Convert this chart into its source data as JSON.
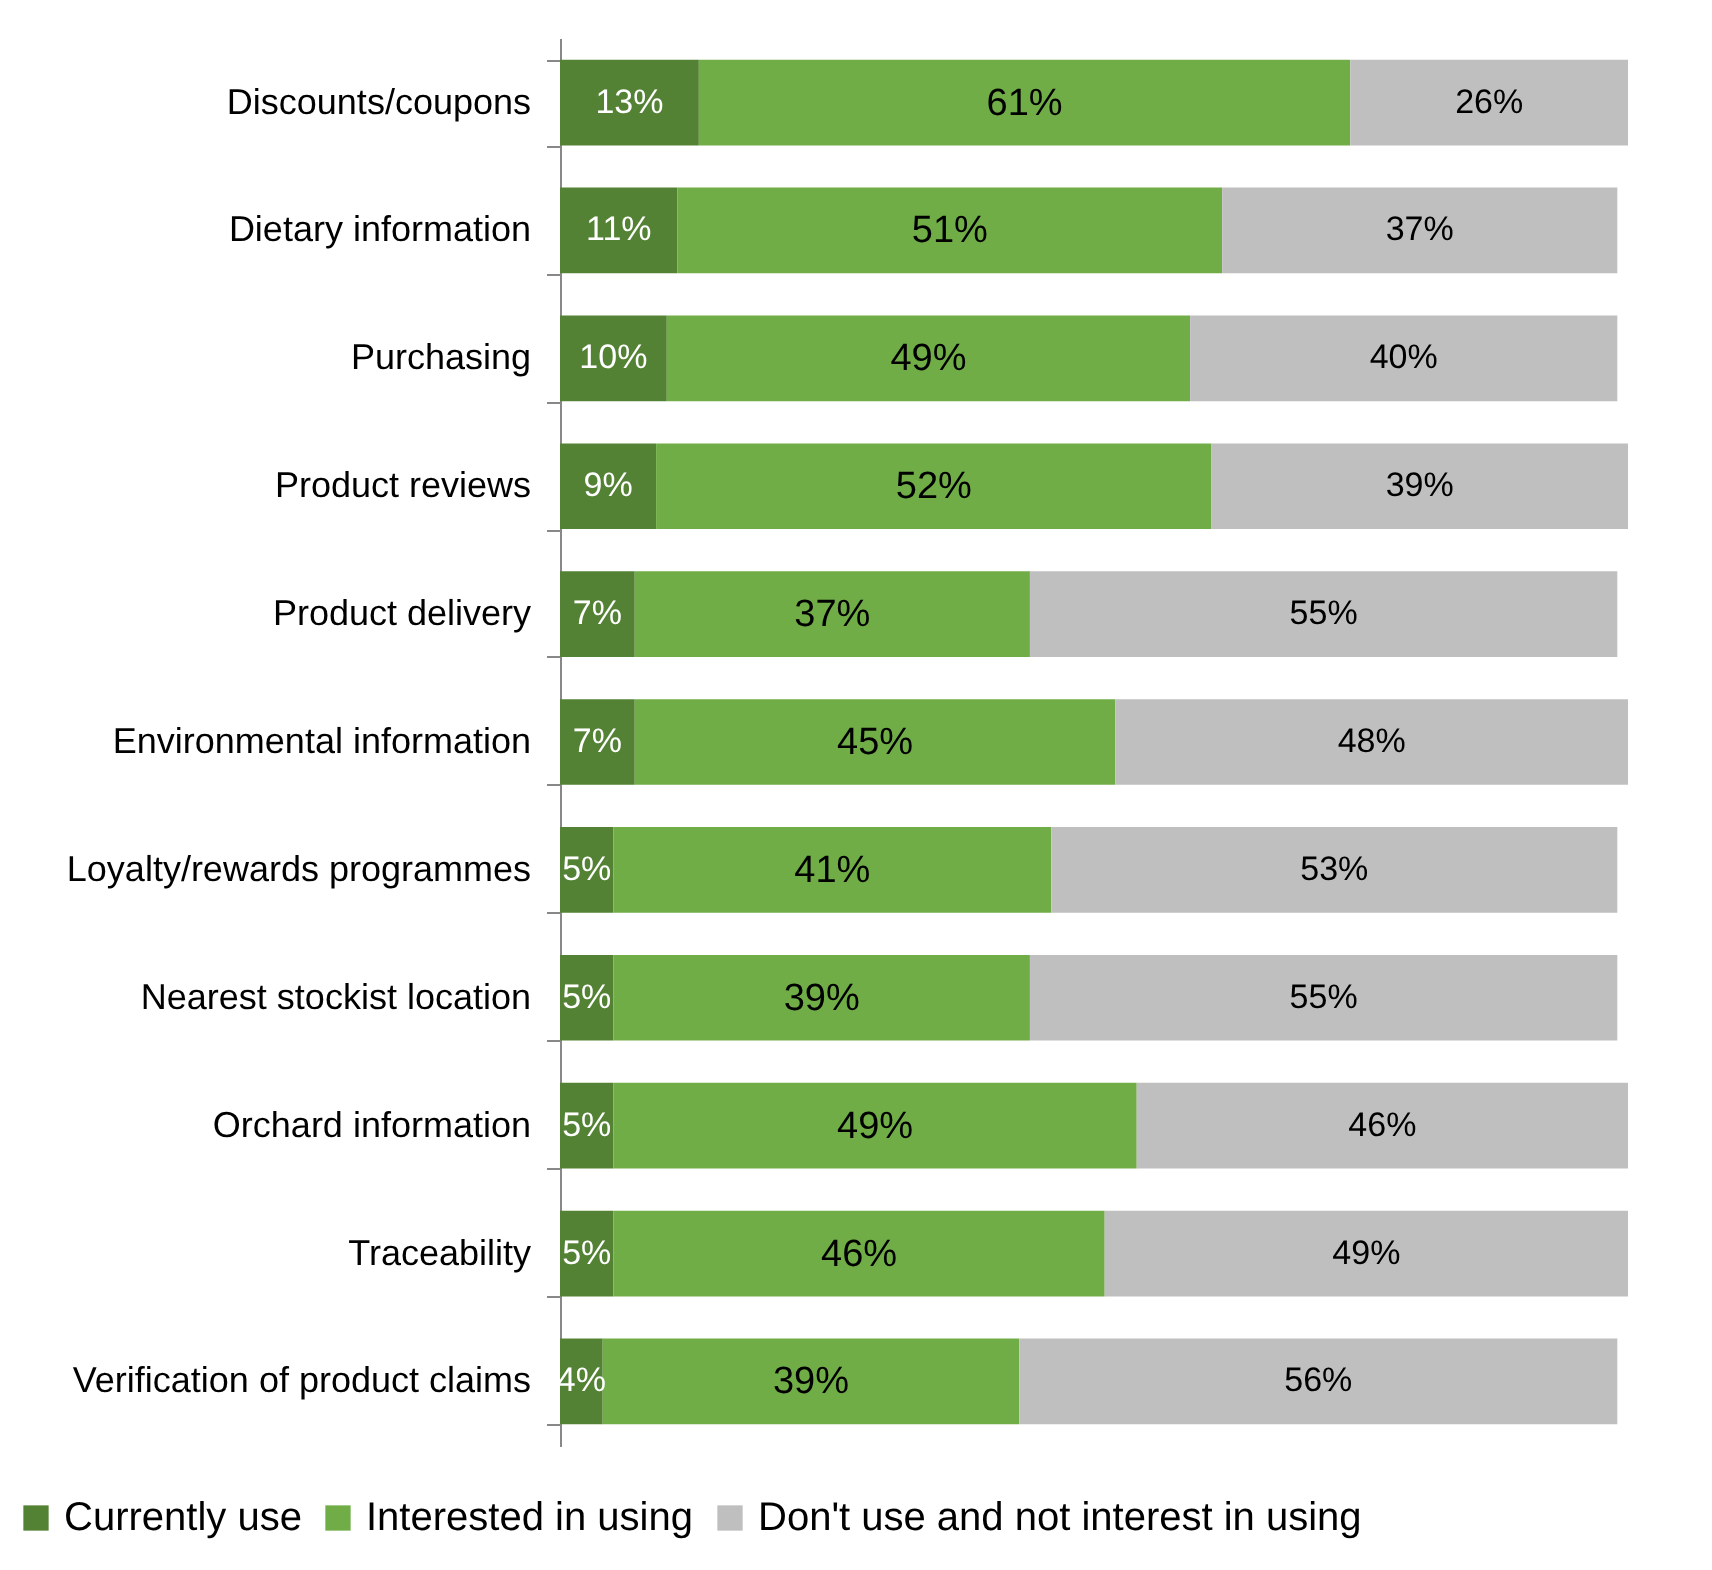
{
  "chart_data": {
    "type": "bar",
    "orientation": "horizontal",
    "stacked": true,
    "legend": "bottom",
    "categories": [
      "Discounts/coupons",
      "Dietary information",
      "Purchasing",
      "Product reviews",
      "Product delivery",
      "Environmental information",
      "Loyalty/rewards programmes",
      "Nearest stockist location",
      "Orchard information",
      "Traceability",
      "Verification of product claims"
    ],
    "series": [
      {
        "name": "Currently use",
        "color": "#548235",
        "values": [
          13,
          11,
          10,
          9,
          7,
          7,
          5,
          5,
          5,
          5,
          4
        ],
        "value_labels": [
          "13%",
          "11%",
          "10%",
          "9%",
          "7%",
          "7%",
          "5%",
          "5%",
          "5%",
          "5%",
          "4%"
        ]
      },
      {
        "name": "Interested in using",
        "color": "#70ad47",
        "values": [
          61,
          51,
          49,
          52,
          37,
          45,
          41,
          39,
          49,
          46,
          39
        ],
        "value_labels": [
          "61%",
          "51%",
          "49%",
          "52%",
          "37%",
          "45%",
          "41%",
          "39%",
          "49%",
          "46%",
          "39%"
        ]
      },
      {
        "name": "Don't use and not interest in using",
        "color": "#bfbfbf",
        "values": [
          26,
          37,
          40,
          39,
          55,
          48,
          53,
          55,
          46,
          49,
          56
        ],
        "value_labels": [
          "26%",
          "37%",
          "40%",
          "39%",
          "55%",
          "48%",
          "53%",
          "55%",
          "46%",
          "49%",
          "56%"
        ]
      }
    ]
  }
}
